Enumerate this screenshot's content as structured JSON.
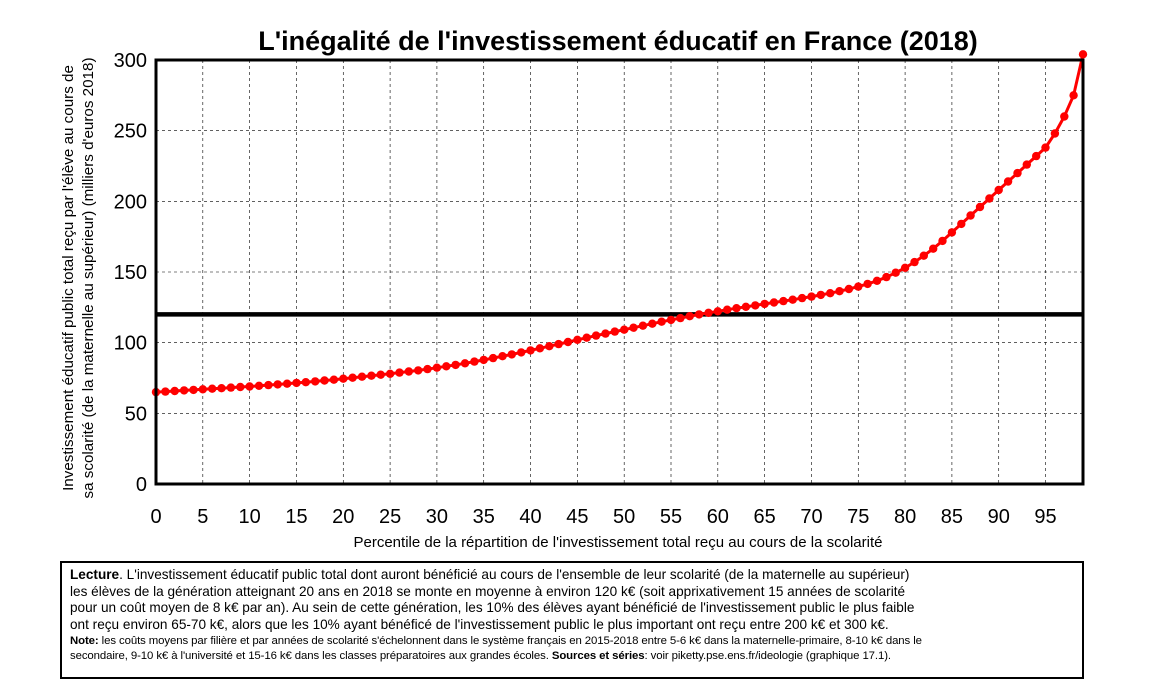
{
  "chart_data": {
    "type": "line",
    "title": "L'inégalité de l'investissement éducatif en France (2018)",
    "xlabel": "Percentile de la répartition de l'investissement total reçu au cours de la scolarité",
    "ylabel": [
      "Investissement éducatif public total reçu par l'élève au cours de",
      "sa scolarité (de la maternelle au supérieur) (milliers d'euros 2018)"
    ],
    "xlim": [
      0,
      99
    ],
    "ylim": [
      0,
      300
    ],
    "xticks": [
      "0",
      "5",
      "10",
      "15",
      "20",
      "25",
      "30",
      "35",
      "40",
      "45",
      "50",
      "55",
      "60",
      "65",
      "70",
      "75",
      "80",
      "85",
      "90",
      "95"
    ],
    "yticks": [
      "0",
      "50",
      "100",
      "150",
      "200",
      "250",
      "300"
    ],
    "grid": true,
    "reference_line": {
      "y": 120
    },
    "series": [
      {
        "color": "#ff0000",
        "x": [
          0,
          1,
          2,
          3,
          4,
          5,
          6,
          7,
          8,
          9,
          10,
          11,
          12,
          13,
          14,
          15,
          16,
          17,
          18,
          19,
          20,
          21,
          22,
          23,
          24,
          25,
          26,
          27,
          28,
          29,
          30,
          31,
          32,
          33,
          34,
          35,
          36,
          37,
          38,
          39,
          40,
          41,
          42,
          43,
          44,
          45,
          46,
          47,
          48,
          49,
          50,
          51,
          52,
          53,
          54,
          55,
          56,
          57,
          58,
          59,
          60,
          61,
          62,
          63,
          64,
          65,
          66,
          67,
          68,
          69,
          70,
          71,
          72,
          73,
          74,
          75,
          76,
          77,
          78,
          79,
          80,
          81,
          82,
          83,
          84,
          85,
          86,
          87,
          88,
          89,
          90,
          91,
          92,
          93,
          94,
          95,
          96,
          97,
          98,
          99
        ],
        "y": [
          65,
          65.4,
          65.8,
          66.2,
          66.6,
          67,
          67.4,
          67.8,
          68.2,
          68.6,
          69,
          69.5,
          70,
          70.5,
          71,
          71.5,
          72,
          72.6,
          73.2,
          73.8,
          74.5,
          75.2,
          75.9,
          76.6,
          77.3,
          78,
          78.8,
          79.6,
          80.4,
          81.3,
          82.3,
          83.3,
          84.3,
          85.4,
          86.6,
          87.8,
          89.1,
          90.4,
          91.7,
          93.1,
          94.5,
          96,
          97.5,
          99,
          100.5,
          102,
          103.5,
          105,
          106.4,
          107.8,
          109.2,
          110.6,
          112,
          113.4,
          114.8,
          116.1,
          117.4,
          118.7,
          120,
          121.1,
          122.2,
          123.3,
          124.4,
          125.4,
          126.4,
          127.4,
          128.4,
          129.4,
          130.4,
          131.5,
          132.6,
          133.8,
          135,
          136.4,
          138,
          139.7,
          141.6,
          143.8,
          146.4,
          149.5,
          153,
          157,
          161.5,
          166.5,
          172,
          178,
          184,
          190,
          196,
          202,
          208,
          214,
          220,
          226,
          232,
          238,
          248,
          260,
          275,
          304
        ]
      }
    ]
  },
  "note": {
    "lecture_label": "Lecture",
    "lecture_lines": [
      ". L'investissement éducatif public total dont auront bénéficié au cours de l'ensemble de leur scolarité (de la maternelle au supérieur)",
      "les élèves de la génération atteignant 20 ans en 2018 se monte en moyenne à environ 120 k€ (soit apprixativement 15 années de scolarité",
      "pour un coût moyen de 8 k€ par an). Au sein de cette génération, les 10% des élèves ayant bénéficié de l'investissement public le plus faible",
      "ont reçu environ 65-70 k€, alors que les 10% ayant bénéficé de l'investissement public le plus important ont reçu entre 200 k€ et 300 k€."
    ],
    "note_label": "Note:",
    "note_line1": " les coûts moyens par filière et par années de scolarité s'échelonnent dans le système français en 2015-2018 entre 5-6 k€ dans la maternelle-primaire, 8-10 k€ dans le",
    "note_line2": "secondaire, 9-10 k€ à l'université et 15-16 k€ dans les classes préparatoires aux grandes écoles. ",
    "sources_label": "Sources et séries",
    "sources_text": ": voir piketty.pse.ens.fr/ideologie (graphique 17.1)."
  }
}
